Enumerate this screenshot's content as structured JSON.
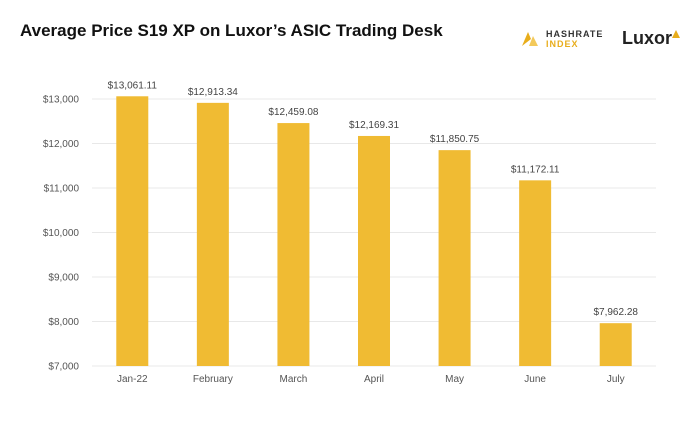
{
  "header": {
    "title": "Average Price S19 XP on Luxor’s ASIC Trading Desk"
  },
  "logos": {
    "hashrate_line1": "HASHRATE",
    "hashrate_line2": "INDEX",
    "luxor": "Luxor"
  },
  "colors": {
    "bar": "#F0BB33",
    "grid": "#E8E8E8",
    "brand_gold": "#E8AD1B"
  },
  "chart_data": {
    "type": "bar",
    "title": "Average Price S19 XP on Luxor’s ASIC Trading Desk",
    "xlabel": "",
    "ylabel": "",
    "categories": [
      "Jan-22",
      "February",
      "March",
      "April",
      "May",
      "June",
      "July"
    ],
    "values": [
      13061.11,
      12913.34,
      12459.08,
      12169.31,
      11850.75,
      11172.11,
      7962.28
    ],
    "data_labels": [
      "$13,061.11",
      "$12,913.34",
      "$12,459.08",
      "$12,169.31",
      "$11,850.75",
      "$11,172.11",
      "$7,962.28"
    ],
    "ylim": [
      7000,
      13000
    ],
    "yticks": [
      7000,
      8000,
      9000,
      10000,
      11000,
      12000,
      13000
    ],
    "ytick_labels": [
      "$7,000",
      "$8,000",
      "$9,000",
      "$10,000",
      "$11,000",
      "$12,000",
      "$13,000"
    ],
    "grid": true,
    "legend": "none"
  }
}
